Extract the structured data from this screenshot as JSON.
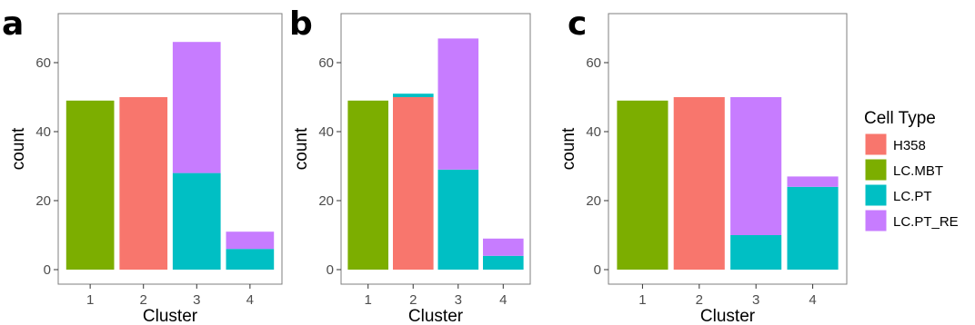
{
  "chart_data": [
    {
      "type": "bar",
      "stacked": true,
      "panel": "a",
      "xlabel": "Cluster",
      "ylabel": "count",
      "categories": [
        "1",
        "2",
        "3",
        "4"
      ],
      "ylim": [
        0,
        70
      ],
      "yticks": [
        0,
        20,
        40,
        60
      ],
      "grid": false,
      "series": [
        {
          "name": "H358",
          "values": [
            0,
            50,
            0,
            0
          ]
        },
        {
          "name": "LC.MBT",
          "values": [
            49,
            0,
            0,
            0
          ]
        },
        {
          "name": "LC.PT",
          "values": [
            0,
            0,
            28,
            6
          ]
        },
        {
          "name": "LC.PT_RE",
          "values": [
            0,
            0,
            38,
            5
          ]
        }
      ]
    },
    {
      "type": "bar",
      "stacked": true,
      "panel": "b",
      "xlabel": "Cluster",
      "ylabel": "count",
      "categories": [
        "1",
        "2",
        "3",
        "4"
      ],
      "ylim": [
        0,
        70
      ],
      "yticks": [
        0,
        20,
        40,
        60
      ],
      "grid": false,
      "series": [
        {
          "name": "H358",
          "values": [
            0,
            50,
            0,
            0
          ]
        },
        {
          "name": "LC.MBT",
          "values": [
            49,
            0,
            0,
            0
          ]
        },
        {
          "name": "LC.PT",
          "values": [
            0,
            1,
            29,
            4
          ]
        },
        {
          "name": "LC.PT_RE",
          "values": [
            0,
            0,
            38,
            5
          ]
        }
      ]
    },
    {
      "type": "bar",
      "stacked": true,
      "panel": "c",
      "xlabel": "Cluster",
      "ylabel": "count",
      "categories": [
        "1",
        "2",
        "3",
        "4"
      ],
      "ylim": [
        0,
        70
      ],
      "yticks": [
        0,
        20,
        40,
        60
      ],
      "grid": false,
      "series": [
        {
          "name": "H358",
          "values": [
            0,
            50,
            0,
            0
          ]
        },
        {
          "name": "LC.MBT",
          "values": [
            49,
            0,
            0,
            0
          ]
        },
        {
          "name": "LC.PT",
          "values": [
            0,
            0,
            10,
            24
          ]
        },
        {
          "name": "LC.PT_RE",
          "values": [
            0,
            0,
            40,
            3
          ]
        }
      ]
    }
  ],
  "legend": {
    "title": "Cell Type",
    "placement": "right",
    "items": [
      {
        "label": "H358",
        "color": "#F8766D"
      },
      {
        "label": "LC.MBT",
        "color": "#7CAE00"
      },
      {
        "label": "LC.PT",
        "color": "#00BFC4"
      },
      {
        "label": "LC.PT_RE",
        "color": "#C77CFF"
      }
    ]
  }
}
